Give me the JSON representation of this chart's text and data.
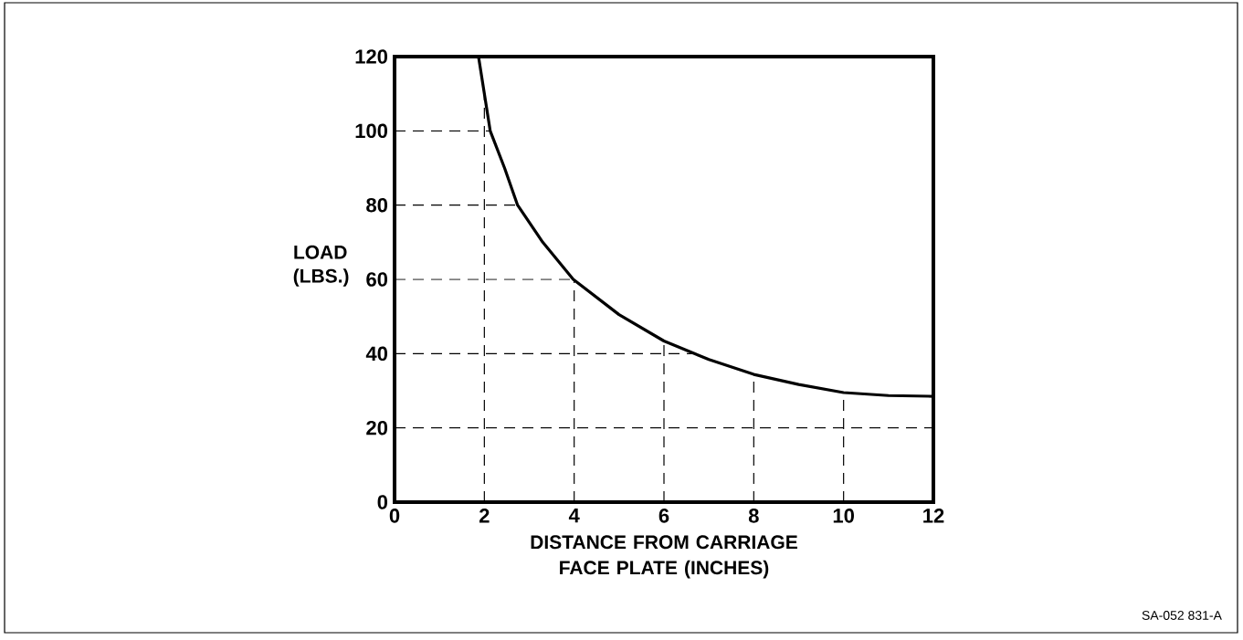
{
  "chart_data": {
    "type": "line",
    "xlabel": "DISTANCE FROM CARRIAGE FACE PLATE (INCHES)",
    "ylabel": "LOAD (LBS.)",
    "x": [
      1.87,
      2.13,
      2.45,
      2.74,
      3.3,
      3.98,
      5,
      6,
      7,
      8,
      9,
      10,
      11,
      12
    ],
    "values": [
      120,
      100,
      90,
      80,
      70,
      60,
      50.5,
      43.4,
      38.4,
      34.4,
      31.7,
      29.5,
      28.7,
      28.5
    ],
    "color": "#000000",
    "line_style": "solid",
    "marker": "none",
    "grid": true,
    "xlim": [
      0,
      12
    ],
    "ylim": [
      0,
      120
    ],
    "xticks": [
      0,
      2,
      4,
      6,
      8,
      10,
      12
    ],
    "yticks": [
      0,
      20,
      40,
      60,
      80,
      100,
      120
    ],
    "annotations": [
      "SA-052 831-A"
    ]
  }
}
